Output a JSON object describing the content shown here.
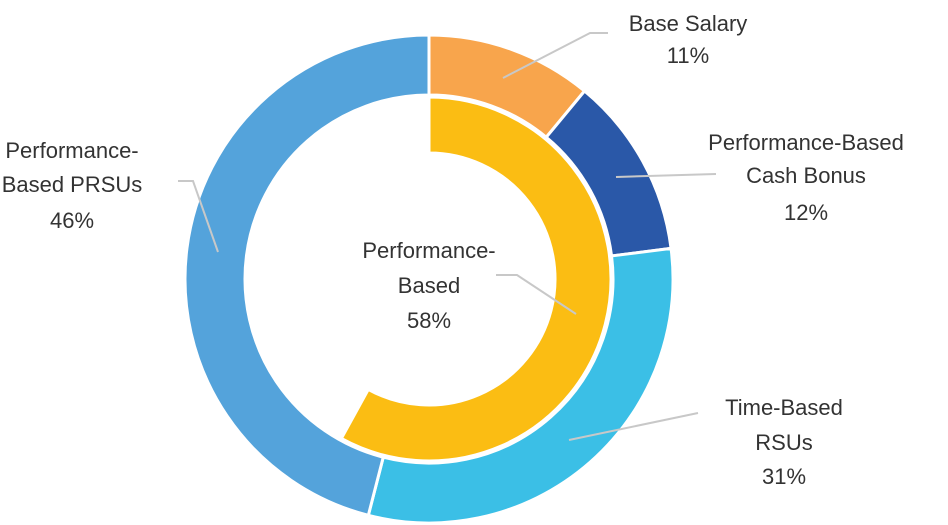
{
  "chart_data": {
    "type": "pie",
    "rings": [
      {
        "ring": "outer",
        "slices": [
          {
            "name": "Base Salary",
            "label_lines": [
              "Base Salary"
            ],
            "percent_label": "11%",
            "value": 11,
            "color": "#F8A54C"
          },
          {
            "name": "Performance-Based Cash Bonus",
            "label_lines": [
              "Performance-Based",
              "Cash Bonus"
            ],
            "percent_label": "12%",
            "value": 12,
            "color": "#2A58A8"
          },
          {
            "name": "Time-Based RSUs",
            "label_lines": [
              "Time-Based",
              "RSUs"
            ],
            "percent_label": "31%",
            "value": 31,
            "color": "#3BBFE6"
          },
          {
            "name": "Performance-Based PRSUs",
            "label_lines": [
              "Performance-",
              "Based PRSUs"
            ],
            "percent_label": "46%",
            "value": 46,
            "color": "#54A3DB"
          }
        ]
      },
      {
        "ring": "inner",
        "slices": [
          {
            "name": "Performance-Based",
            "label_lines": [
              "Performance-",
              "Based"
            ],
            "percent_label": "58%",
            "value": 58,
            "color": "#FBBD13"
          }
        ]
      }
    ],
    "legend": "none",
    "grid": false
  }
}
